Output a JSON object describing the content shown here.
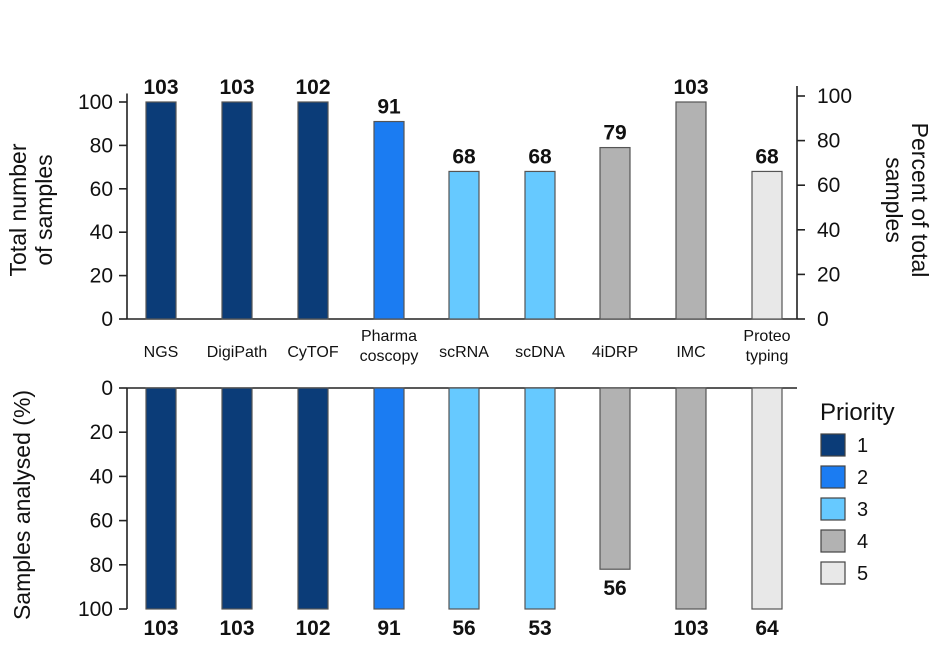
{
  "chart_data": [
    {
      "type": "bar",
      "panel": "top",
      "categories": [
        [
          "NGS"
        ],
        [
          "DigiPath"
        ],
        [
          "CyTOF"
        ],
        [
          "Pharma",
          "coscopy"
        ],
        [
          "scRNA"
        ],
        [
          "scDNA"
        ],
        [
          "4iDRP"
        ],
        [
          "IMC"
        ],
        [
          "Proteo",
          "typing"
        ]
      ],
      "values": [
        103,
        103,
        102,
        91,
        68,
        68,
        79,
        103,
        68
      ],
      "data_labels": [
        "103",
        "103",
        "102",
        "91",
        "68",
        "68",
        "79",
        "103",
        "68"
      ],
      "priority": [
        1,
        1,
        1,
        2,
        3,
        3,
        4,
        4,
        5
      ],
      "ylabel": [
        "Total number",
        "of samples"
      ],
      "y2label": [
        "Percent of total",
        "samples"
      ],
      "ylim": [
        0,
        103
      ],
      "yticks": [
        0,
        20,
        40,
        60,
        80,
        100
      ],
      "yticks_labels": [
        "0",
        "20",
        "40",
        "60",
        "80",
        "100"
      ],
      "y2ticks": [
        0,
        20,
        40,
        60,
        80,
        100
      ],
      "y2ticks_labels": [
        "0",
        "20",
        "40",
        "60",
        "80",
        "100"
      ]
    },
    {
      "type": "bar",
      "panel": "bottom",
      "orientation": "downward",
      "categories": [
        "NGS",
        "DigiPath",
        "CyTOF",
        "Pharmacoscopy",
        "scRNA",
        "scDNA",
        "4iDRP",
        "IMC",
        "Proteotyping"
      ],
      "values": [
        100,
        100,
        100,
        100,
        100,
        100,
        82,
        100,
        100
      ],
      "data_labels": [
        "103",
        "103",
        "102",
        "91",
        "56",
        "53",
        "56",
        "103",
        "64"
      ],
      "priority": [
        1,
        1,
        1,
        2,
        3,
        3,
        4,
        4,
        5
      ],
      "ylabel": "Samples analysed (%)",
      "ylim": [
        0,
        100
      ],
      "yticks": [
        0,
        20,
        40,
        60,
        80,
        100
      ],
      "yticks_labels": [
        "0",
        "20",
        "40",
        "60",
        "80",
        "100"
      ]
    }
  ],
  "legend": {
    "title": "Priority",
    "placement": "right",
    "items": [
      {
        "label": "1",
        "color": "#0b3c78"
      },
      {
        "label": "2",
        "color": "#1b7cf2"
      },
      {
        "label": "3",
        "color": "#66c9ff"
      },
      {
        "label": "4",
        "color": "#b2b2b2"
      },
      {
        "label": "5",
        "color": "#e8e8e8"
      }
    ]
  }
}
